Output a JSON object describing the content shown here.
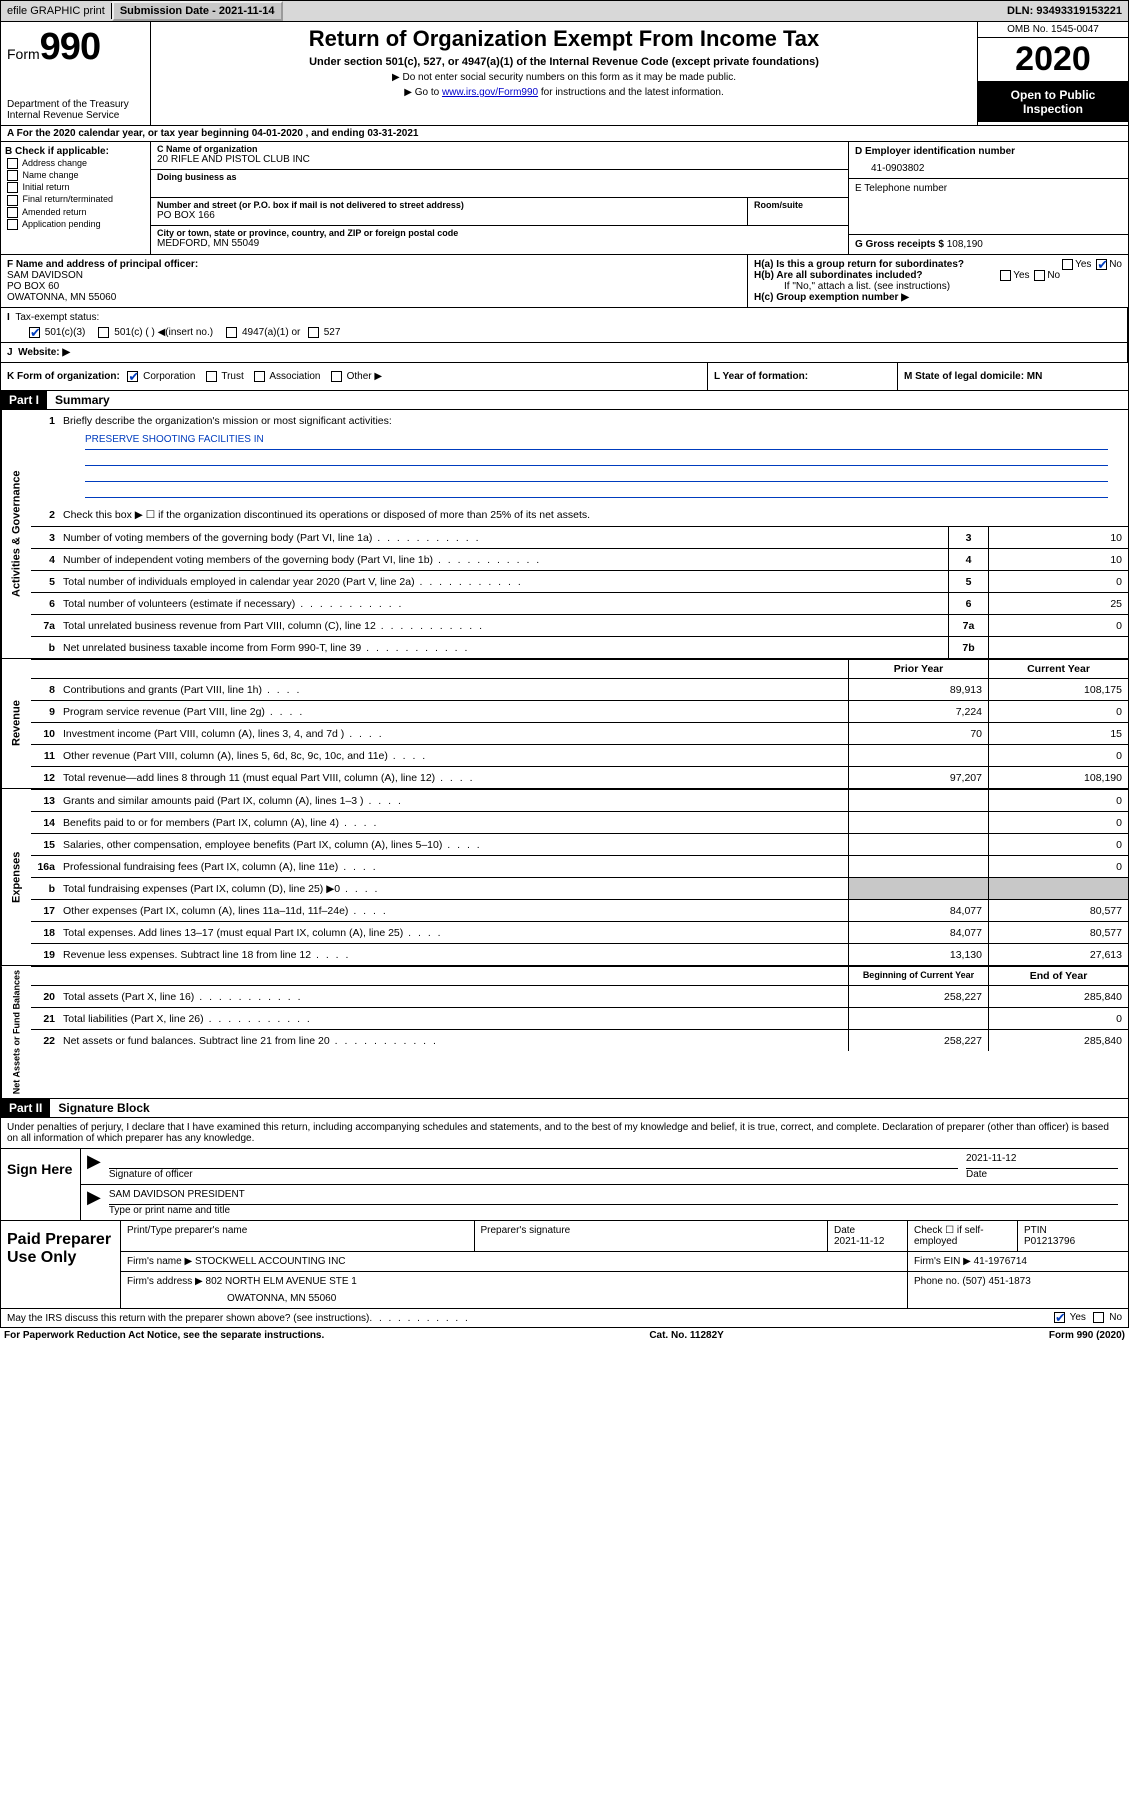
{
  "topbar": {
    "efile": "efile GRAPHIC print",
    "submission_label": "Submission Date - ",
    "submission_date": "2021-11-14",
    "dln_label": "DLN: ",
    "dln": "93493319153221"
  },
  "header": {
    "form_word": "Form",
    "form_num": "990",
    "dept": "Department of the Treasury",
    "irs": "Internal Revenue Service",
    "title": "Return of Organization Exempt From Income Tax",
    "subtitle": "Under section 501(c), 527, or 4947(a)(1) of the Internal Revenue Code (except private foundations)",
    "note1": "Do not enter social security numbers on this form as it may be made public.",
    "note2_pre": "Go to ",
    "note2_link": "www.irs.gov/Form990",
    "note2_post": " for instructions and the latest information.",
    "omb": "OMB No. 1545-0047",
    "year": "2020",
    "inspect": "Open to Public Inspection"
  },
  "rowA": "For the 2020 calendar year, or tax year beginning 04-01-2020    , and ending 03-31-2021",
  "colB": {
    "header": "B Check if applicable:",
    "opts": [
      "Address change",
      "Name change",
      "Initial return",
      "Final return/terminated",
      "Amended return",
      "Application pending"
    ]
  },
  "colC": {
    "name_lbl": "C Name of organization",
    "name": "20 RIFLE AND PISTOL CLUB INC",
    "dba_lbl": "Doing business as",
    "dba": "",
    "addr_lbl": "Number and street (or P.O. box if mail is not delivered to street address)",
    "room_lbl": "Room/suite",
    "addr": "PO BOX 166",
    "city_lbl": "City or town, state or province, country, and ZIP or foreign postal code",
    "city": "MEDFORD, MN  55049"
  },
  "colD": {
    "ein_lbl": "D Employer identification number",
    "ein": "41-0903802",
    "tel_lbl": "E Telephone number",
    "tel": "",
    "gross_lbl": "G Gross receipts $ ",
    "gross": "108,190"
  },
  "rowF": {
    "lbl": "F  Name and address of principal officer:",
    "name": "SAM DAVIDSON",
    "addr1": "PO BOX 60",
    "addr2": "OWATONNA, MN  55060"
  },
  "rowH": {
    "a": "H(a)  Is this a group return for subordinates?",
    "b": "H(b)  Are all subordinates included?",
    "b_note": "If \"No,\" attach a list. (see instructions)",
    "c": "H(c)  Group exemption number ▶"
  },
  "rowI": {
    "lbl": "Tax-exempt status:",
    "opts": [
      "501(c)(3)",
      "501(c) (  ) ◀(insert no.)",
      "4947(a)(1) or",
      "527"
    ]
  },
  "rowJ": "Website: ▶",
  "rowK": {
    "lbl": "K Form of organization:",
    "opts": [
      "Corporation",
      "Trust",
      "Association",
      "Other ▶"
    ]
  },
  "rowL": "L Year of formation:",
  "rowM": "M State of legal domicile: MN",
  "part1": {
    "label": "Part I",
    "title": "Summary"
  },
  "summary": {
    "q1": "Briefly describe the organization's mission or most significant activities:",
    "mission": "PRESERVE SHOOTING FACILITIES IN",
    "q2": "Check this box ▶ ☐  if the organization discontinued its operations or disposed of more than 25% of its net assets.",
    "lines_single": [
      {
        "n": "3",
        "d": "Number of voting members of the governing body (Part VI, line 1a)",
        "b": "3",
        "v": "10"
      },
      {
        "n": "4",
        "d": "Number of independent voting members of the governing body (Part VI, line 1b)",
        "b": "4",
        "v": "10"
      },
      {
        "n": "5",
        "d": "Total number of individuals employed in calendar year 2020 (Part V, line 2a)",
        "b": "5",
        "v": "0"
      },
      {
        "n": "6",
        "d": "Total number of volunteers (estimate if necessary)",
        "b": "6",
        "v": "25"
      },
      {
        "n": "7a",
        "d": "Total unrelated business revenue from Part VIII, column (C), line 12",
        "b": "7a",
        "v": "0"
      },
      {
        "n": "b",
        "d": "Net unrelated business taxable income from Form 990-T, line 39",
        "b": "7b",
        "v": ""
      }
    ],
    "col_prior": "Prior Year",
    "col_current": "Current Year",
    "revenue": [
      {
        "n": "8",
        "d": "Contributions and grants (Part VIII, line 1h)",
        "p": "89,913",
        "c": "108,175"
      },
      {
        "n": "9",
        "d": "Program service revenue (Part VIII, line 2g)",
        "p": "7,224",
        "c": "0"
      },
      {
        "n": "10",
        "d": "Investment income (Part VIII, column (A), lines 3, 4, and 7d )",
        "p": "70",
        "c": "15"
      },
      {
        "n": "11",
        "d": "Other revenue (Part VIII, column (A), lines 5, 6d, 8c, 9c, 10c, and 11e)",
        "p": "",
        "c": "0"
      },
      {
        "n": "12",
        "d": "Total revenue—add lines 8 through 11 (must equal Part VIII, column (A), line 12)",
        "p": "97,207",
        "c": "108,190"
      }
    ],
    "expenses": [
      {
        "n": "13",
        "d": "Grants and similar amounts paid (Part IX, column (A), lines 1–3 )",
        "p": "",
        "c": "0"
      },
      {
        "n": "14",
        "d": "Benefits paid to or for members (Part IX, column (A), line 4)",
        "p": "",
        "c": "0"
      },
      {
        "n": "15",
        "d": "Salaries, other compensation, employee benefits (Part IX, column (A), lines 5–10)",
        "p": "",
        "c": "0"
      },
      {
        "n": "16a",
        "d": "Professional fundraising fees (Part IX, column (A), line 11e)",
        "p": "",
        "c": "0"
      },
      {
        "n": "b",
        "d": "Total fundraising expenses (Part IX, column (D), line 25) ▶0",
        "p": "SHADE",
        "c": "SHADE"
      },
      {
        "n": "17",
        "d": "Other expenses (Part IX, column (A), lines 11a–11d, 11f–24e)",
        "p": "84,077",
        "c": "80,577"
      },
      {
        "n": "18",
        "d": "Total expenses. Add lines 13–17 (must equal Part IX, column (A), line 25)",
        "p": "84,077",
        "c": "80,577"
      },
      {
        "n": "19",
        "d": "Revenue less expenses. Subtract line 18 from line 12",
        "p": "13,130",
        "c": "27,613"
      }
    ],
    "col_begin": "Beginning of Current Year",
    "col_end": "End of Year",
    "netassets": [
      {
        "n": "20",
        "d": "Total assets (Part X, line 16)",
        "p": "258,227",
        "c": "285,840"
      },
      {
        "n": "21",
        "d": "Total liabilities (Part X, line 26)",
        "p": "",
        "c": "0"
      },
      {
        "n": "22",
        "d": "Net assets or fund balances. Subtract line 21 from line 20",
        "p": "258,227",
        "c": "285,840"
      }
    ],
    "side_ag": "Activities & Governance",
    "side_rev": "Revenue",
    "side_exp": "Expenses",
    "side_na": "Net Assets or Fund Balances"
  },
  "part2": {
    "label": "Part II",
    "title": "Signature Block",
    "declaration": "Under penalties of perjury, I declare that I have examined this return, including accompanying schedules and statements, and to the best of my knowledge and belief, it is true, correct, and complete. Declaration of preparer (other than officer) is based on all information of which preparer has any knowledge."
  },
  "sign": {
    "left": "Sign Here",
    "sig_lbl": "Signature of officer",
    "date_lbl": "Date",
    "date": "2021-11-12",
    "name": "SAM DAVIDSON PRESIDENT",
    "name_lbl": "Type or print name and title"
  },
  "prep": {
    "left": "Paid Preparer Use Only",
    "h1": "Print/Type preparer's name",
    "h2": "Preparer's signature",
    "h3": "Date",
    "h3v": "2021-11-12",
    "h4": "Check ☐ if self-employed",
    "h5": "PTIN",
    "h5v": "P01213796",
    "firm_lbl": "Firm's name      ▶",
    "firm": "STOCKWELL ACCOUNTING INC",
    "ein_lbl": "Firm's EIN ▶",
    "ein": "41-1976714",
    "addr_lbl": "Firm's address ▶",
    "addr1": "802 NORTH ELM AVENUE STE 1",
    "addr2": "OWATONNA, MN  55060",
    "phone_lbl": "Phone no.",
    "phone": "(507) 451-1873"
  },
  "discuss": "May the IRS discuss this return with the preparer shown above? (see instructions)",
  "footer": {
    "left": "For Paperwork Reduction Act Notice, see the separate instructions.",
    "mid": "Cat. No. 11282Y",
    "right": "Form 990 (2020)"
  }
}
